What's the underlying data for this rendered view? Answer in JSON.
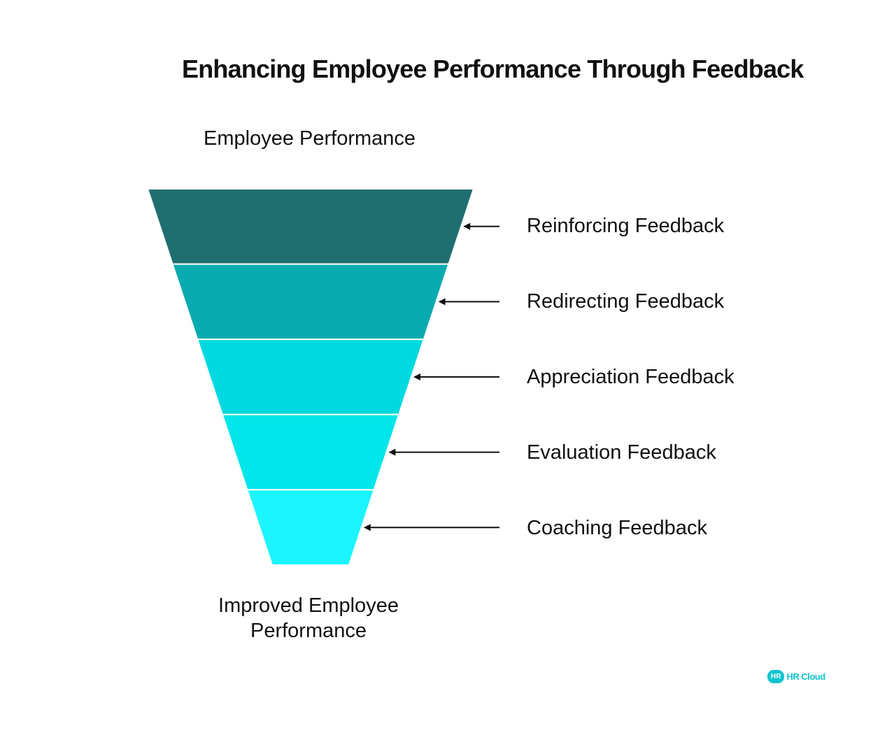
{
  "title": "Enhancing Employee Performance Through Feedback",
  "top_label": "Employee Performance",
  "bottom_label": "Improved Employee Performance",
  "stages": [
    {
      "label": "Reinforcing Feedback",
      "color": "#1F6F70"
    },
    {
      "label": "Redirecting Feedback",
      "color": "#0AABB0"
    },
    {
      "label": "Appreciation Feedback",
      "color": "#00D9E0"
    },
    {
      "label": "Evaluation Feedback",
      "color": "#00E6EA"
    },
    {
      "label": "Coaching Feedback",
      "color": "#1CF5FF"
    }
  ],
  "logo": {
    "badge": "HR",
    "text": "HR Cloud",
    "color": "#10C4CF"
  }
}
